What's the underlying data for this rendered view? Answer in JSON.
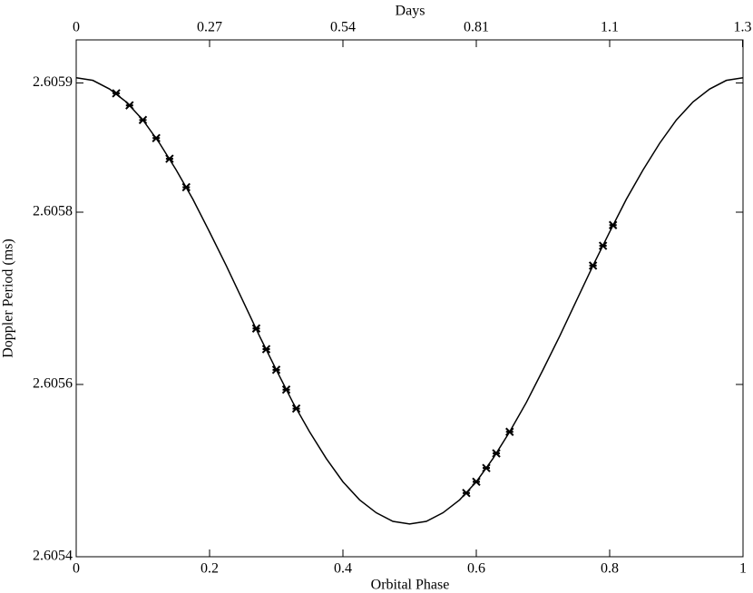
{
  "chart_data": {
    "type": "line",
    "top_xlabel": "Days",
    "xlabel": "Orbital Phase",
    "ylabel": "Doppler Period (ms)",
    "xlim": [
      0,
      1
    ],
    "xticks": [
      0,
      0.2,
      0.4,
      0.6,
      0.8,
      1
    ],
    "top_xlim": [
      0,
      1.35
    ],
    "top_xticks": [
      0,
      0.27,
      0.54,
      0.81,
      {
        "value": 1.08,
        "label": "1.1"
      },
      {
        "value": 1.349,
        "label": "1.3"
      }
    ],
    "ylim": [
      2.6054,
      2.606
    ],
    "yticks": [
      2.6054,
      2.6056,
      2.6058,
      {
        "value": 2.60595,
        "label": "2.6059"
      }
    ],
    "series": [
      {
        "type": "line",
        "color": "#000000",
        "x": [
          0,
          0.025,
          0.05,
          0.075,
          0.1,
          0.125,
          0.15,
          0.175,
          0.2,
          0.225,
          0.25,
          0.275,
          0.3,
          0.325,
          0.35,
          0.375,
          0.4,
          0.425,
          0.45,
          0.475,
          0.5,
          0.525,
          0.55,
          0.575,
          0.6,
          0.625,
          0.65,
          0.675,
          0.7,
          0.725,
          0.75,
          0.775,
          0.8,
          0.825,
          0.85,
          0.875,
          0.9,
          0.925,
          0.95,
          0.975,
          1
        ],
        "values": [
          2.605956,
          2.605953,
          2.605943,
          2.605928,
          2.605907,
          2.60588,
          2.605849,
          2.605815,
          2.605777,
          2.605738,
          2.605697,
          2.605656,
          2.605617,
          2.605579,
          2.605545,
          2.605514,
          2.605487,
          2.605466,
          2.605451,
          2.605441,
          2.605438,
          2.605441,
          2.605451,
          2.605466,
          2.605487,
          2.605514,
          2.605545,
          2.605579,
          2.605617,
          2.605656,
          2.605697,
          2.605738,
          2.605777,
          2.605815,
          2.605849,
          2.60588,
          2.605907,
          2.605928,
          2.605943,
          2.605953,
          2.605956
        ]
      },
      {
        "type": "scatter",
        "color": "#000000",
        "marker": "x",
        "x": [
          0.06,
          0.08,
          0.1,
          0.12,
          0.14,
          0.165,
          0.27,
          0.285,
          0.3,
          0.315,
          0.33,
          0.585,
          0.6,
          0.615,
          0.63,
          0.65,
          0.775,
          0.79,
          0.805
        ],
        "values": [
          2.605938,
          2.605924,
          2.605907,
          2.605886,
          2.605862,
          2.605829,
          2.605665,
          2.605641,
          2.605617,
          2.605594,
          2.605572,
          2.605474,
          2.605487,
          2.605503,
          2.60552,
          2.605545,
          2.605738,
          2.605761,
          2.605785
        ]
      }
    ]
  }
}
